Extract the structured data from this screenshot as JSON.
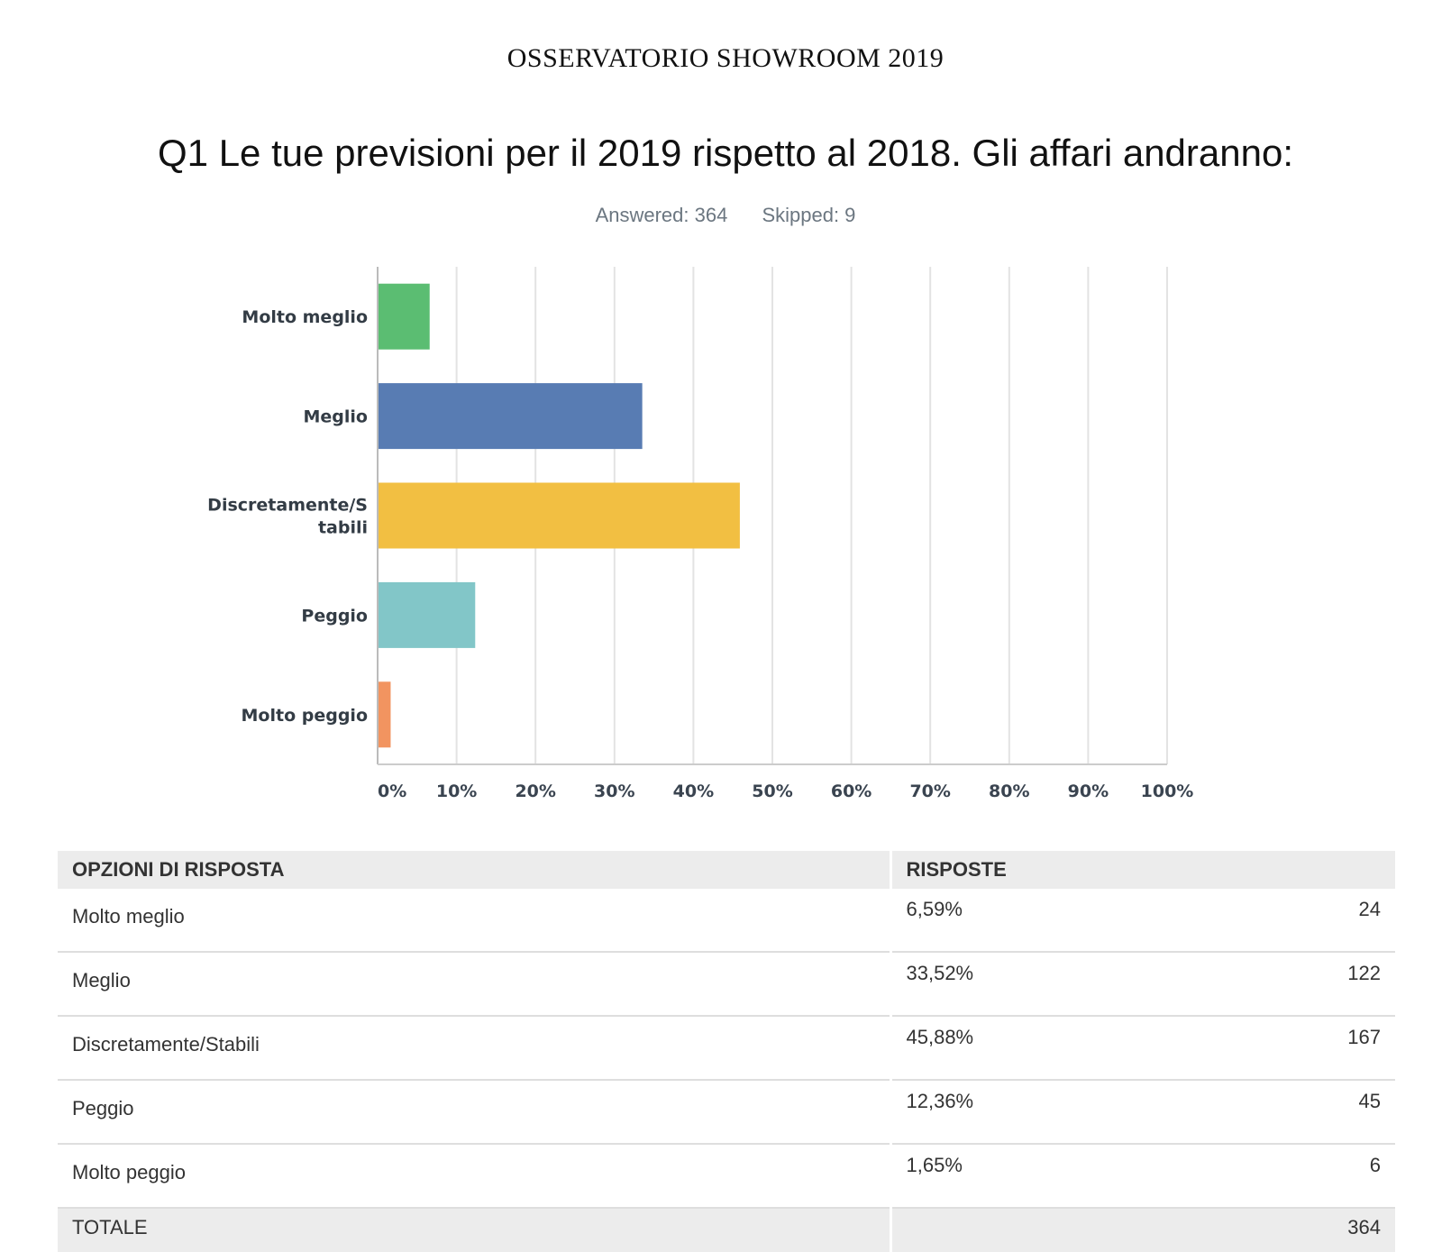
{
  "page": {
    "header": "OSSERVATORIO SHOWROOM 2019",
    "question": "Q1 Le tue previsioni per il 2019 rispetto al 2018. Gli affari andranno:",
    "answered": "Answered: 364",
    "skipped": "Skipped: 9"
  },
  "chart_data": {
    "type": "bar",
    "orientation": "horizontal",
    "categories": [
      "Molto meglio",
      "Meglio",
      "Discretamente/Stabili",
      "Peggio",
      "Molto peggio"
    ],
    "category_label_lines": [
      [
        "Molto meglio"
      ],
      [
        "Meglio"
      ],
      [
        "Discretamente/S",
        "tabili"
      ],
      [
        "Peggio"
      ],
      [
        "Molto peggio"
      ]
    ],
    "values": [
      6.59,
      33.52,
      45.88,
      12.36,
      1.65
    ],
    "colors": [
      "#5bbd72",
      "#587cb3",
      "#f2bf42",
      "#82c6c8",
      "#f29460"
    ],
    "xlim": [
      0,
      100
    ],
    "x_ticks": [
      "0%",
      "10%",
      "20%",
      "30%",
      "40%",
      "50%",
      "60%",
      "70%",
      "80%",
      "90%",
      "100%"
    ],
    "grid": true,
    "legend": "none"
  },
  "table": {
    "headers": [
      "OPZIONI DI RISPOSTA",
      "RISPOSTE"
    ],
    "rows": [
      {
        "option": "Molto meglio",
        "percent": "6,59%",
        "count": "24"
      },
      {
        "option": "Meglio",
        "percent": "33,52%",
        "count": "122"
      },
      {
        "option": "Discretamente/Stabili",
        "percent": "45,88%",
        "count": "167"
      },
      {
        "option": "Peggio",
        "percent": "12,36%",
        "count": "45"
      },
      {
        "option": "Molto peggio",
        "percent": "1,65%",
        "count": "6"
      }
    ],
    "total_label": "TOTALE",
    "total_count": "364"
  }
}
